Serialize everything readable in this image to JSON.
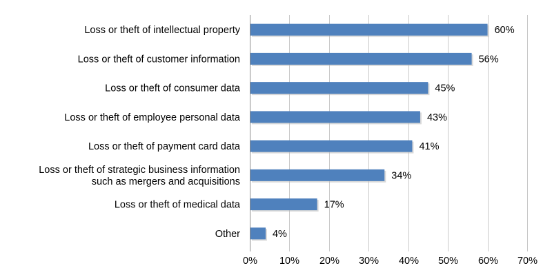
{
  "chart_data": {
    "type": "bar",
    "orientation": "horizontal",
    "categories": [
      "Loss or theft of intellectual property",
      "Loss or theft of customer information",
      "Loss or theft of consumer data",
      "Loss or theft of employee personal data",
      "Loss or theft of payment card data",
      "Loss or theft of strategic business information such as mergers and acquisitions",
      "Loss or theft of medical data",
      "Other"
    ],
    "category_lines": [
      [
        "Loss or theft of intellectual property"
      ],
      [
        "Loss or theft of customer information"
      ],
      [
        "Loss or theft of consumer data"
      ],
      [
        "Loss or theft of employee personal data"
      ],
      [
        "Loss or theft of payment card data"
      ],
      [
        "Loss or theft of strategic business information",
        "such as mergers and acquisitions"
      ],
      [
        "Loss or theft of medical data"
      ],
      [
        "Other"
      ]
    ],
    "values": [
      60,
      56,
      45,
      43,
      41,
      34,
      17,
      4
    ],
    "data_labels": [
      "60%",
      "56%",
      "45%",
      "43%",
      "41%",
      "34%",
      "17%",
      "4%"
    ],
    "xlim": [
      0,
      70
    ],
    "x_ticks": [
      0,
      10,
      20,
      30,
      40,
      50,
      60,
      70
    ],
    "x_tick_labels": [
      "0%",
      "10%",
      "20%",
      "30%",
      "40%",
      "50%",
      "60%",
      "70%"
    ],
    "grid": "vertical",
    "legend": "none",
    "bar_color": "#4f81bd",
    "bar_shadow_color": "#b9b9b9",
    "grid_color": "#c8c8c8"
  }
}
